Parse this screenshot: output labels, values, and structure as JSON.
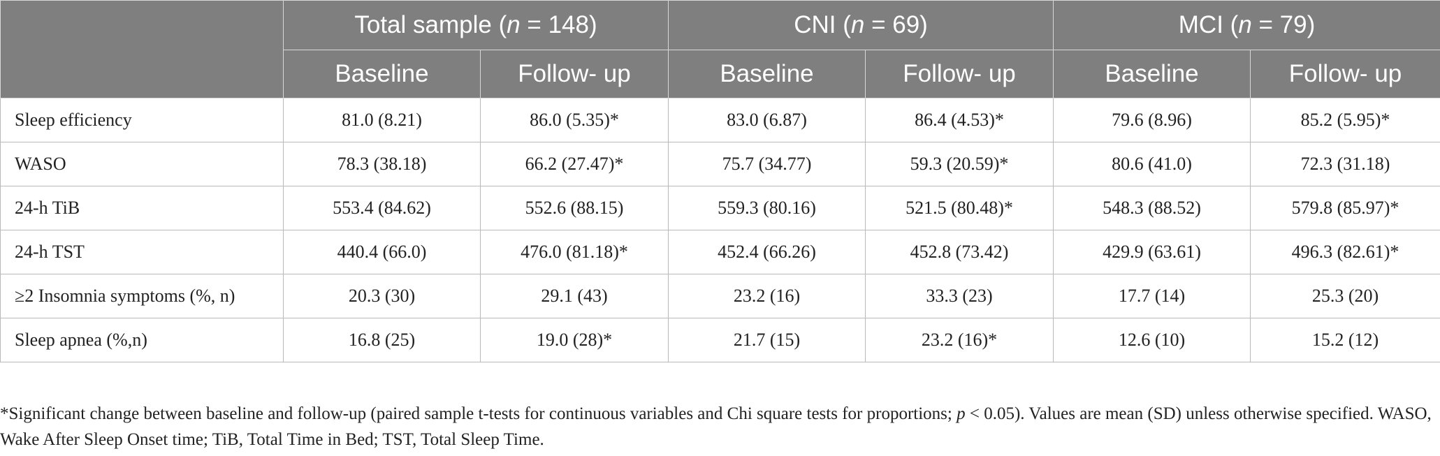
{
  "table": {
    "groups": [
      {
        "name": "Total sample (",
        "n_label": "n",
        "n_value": " = 148)"
      },
      {
        "name": "CNI (",
        "n_label": "n",
        "n_value": " = 69)"
      },
      {
        "name": "MCI (",
        "n_label": "n",
        "n_value": " = 79)"
      }
    ],
    "subheaders": [
      "Baseline",
      "Follow- up",
      "Baseline",
      "Follow- up",
      "Baseline",
      "Follow- up"
    ],
    "rows": [
      {
        "label": "Sleep efficiency",
        "values": [
          "81.0 (8.21)",
          "86.0 (5.35)*",
          "83.0 (6.87)",
          "86.4 (4.53)*",
          "79.6 (8.96)",
          "85.2 (5.95)*"
        ]
      },
      {
        "label": "WASO",
        "values": [
          "78.3 (38.18)",
          "66.2 (27.47)*",
          "75.7 (34.77)",
          "59.3 (20.59)*",
          "80.6 (41.0)",
          "72.3 (31.18)"
        ]
      },
      {
        "label": "24-h TiB",
        "values": [
          "553.4 (84.62)",
          "552.6 (88.15)",
          "559.3 (80.16)",
          "521.5 (80.48)*",
          "548.3 (88.52)",
          "579.8 (85.97)*"
        ]
      },
      {
        "label": "24-h TST",
        "values": [
          "440.4 (66.0)",
          "476.0 (81.18)*",
          "452.4 (66.26)",
          "452.8 (73.42)",
          "429.9 (63.61)",
          "496.3 (82.61)*"
        ]
      },
      {
        "label": "≥2 Insomnia symptoms (%, n)",
        "values": [
          "20.3 (30)",
          "29.1 (43)",
          "23.2 (16)",
          "33.3 (23)",
          "17.7 (14)",
          "25.3 (20)"
        ]
      },
      {
        "label": "Sleep apnea (%,n)",
        "values": [
          "16.8 (25)",
          "19.0 (28)*",
          "21.7 (15)",
          "23.2 (16)*",
          "12.6 (10)",
          "15.2 (12)"
        ]
      }
    ]
  },
  "footnote": {
    "part1": "*Significant change between baseline and follow-up (paired sample t-tests for continuous variables and Chi square tests for proportions; ",
    "p_label": "p",
    "part2": " < 0.05). Values are mean (SD) unless otherwise specified. WASO, Wake After Sleep Onset time; TiB, Total Time in Bed; TST, Total Sleep Time."
  }
}
